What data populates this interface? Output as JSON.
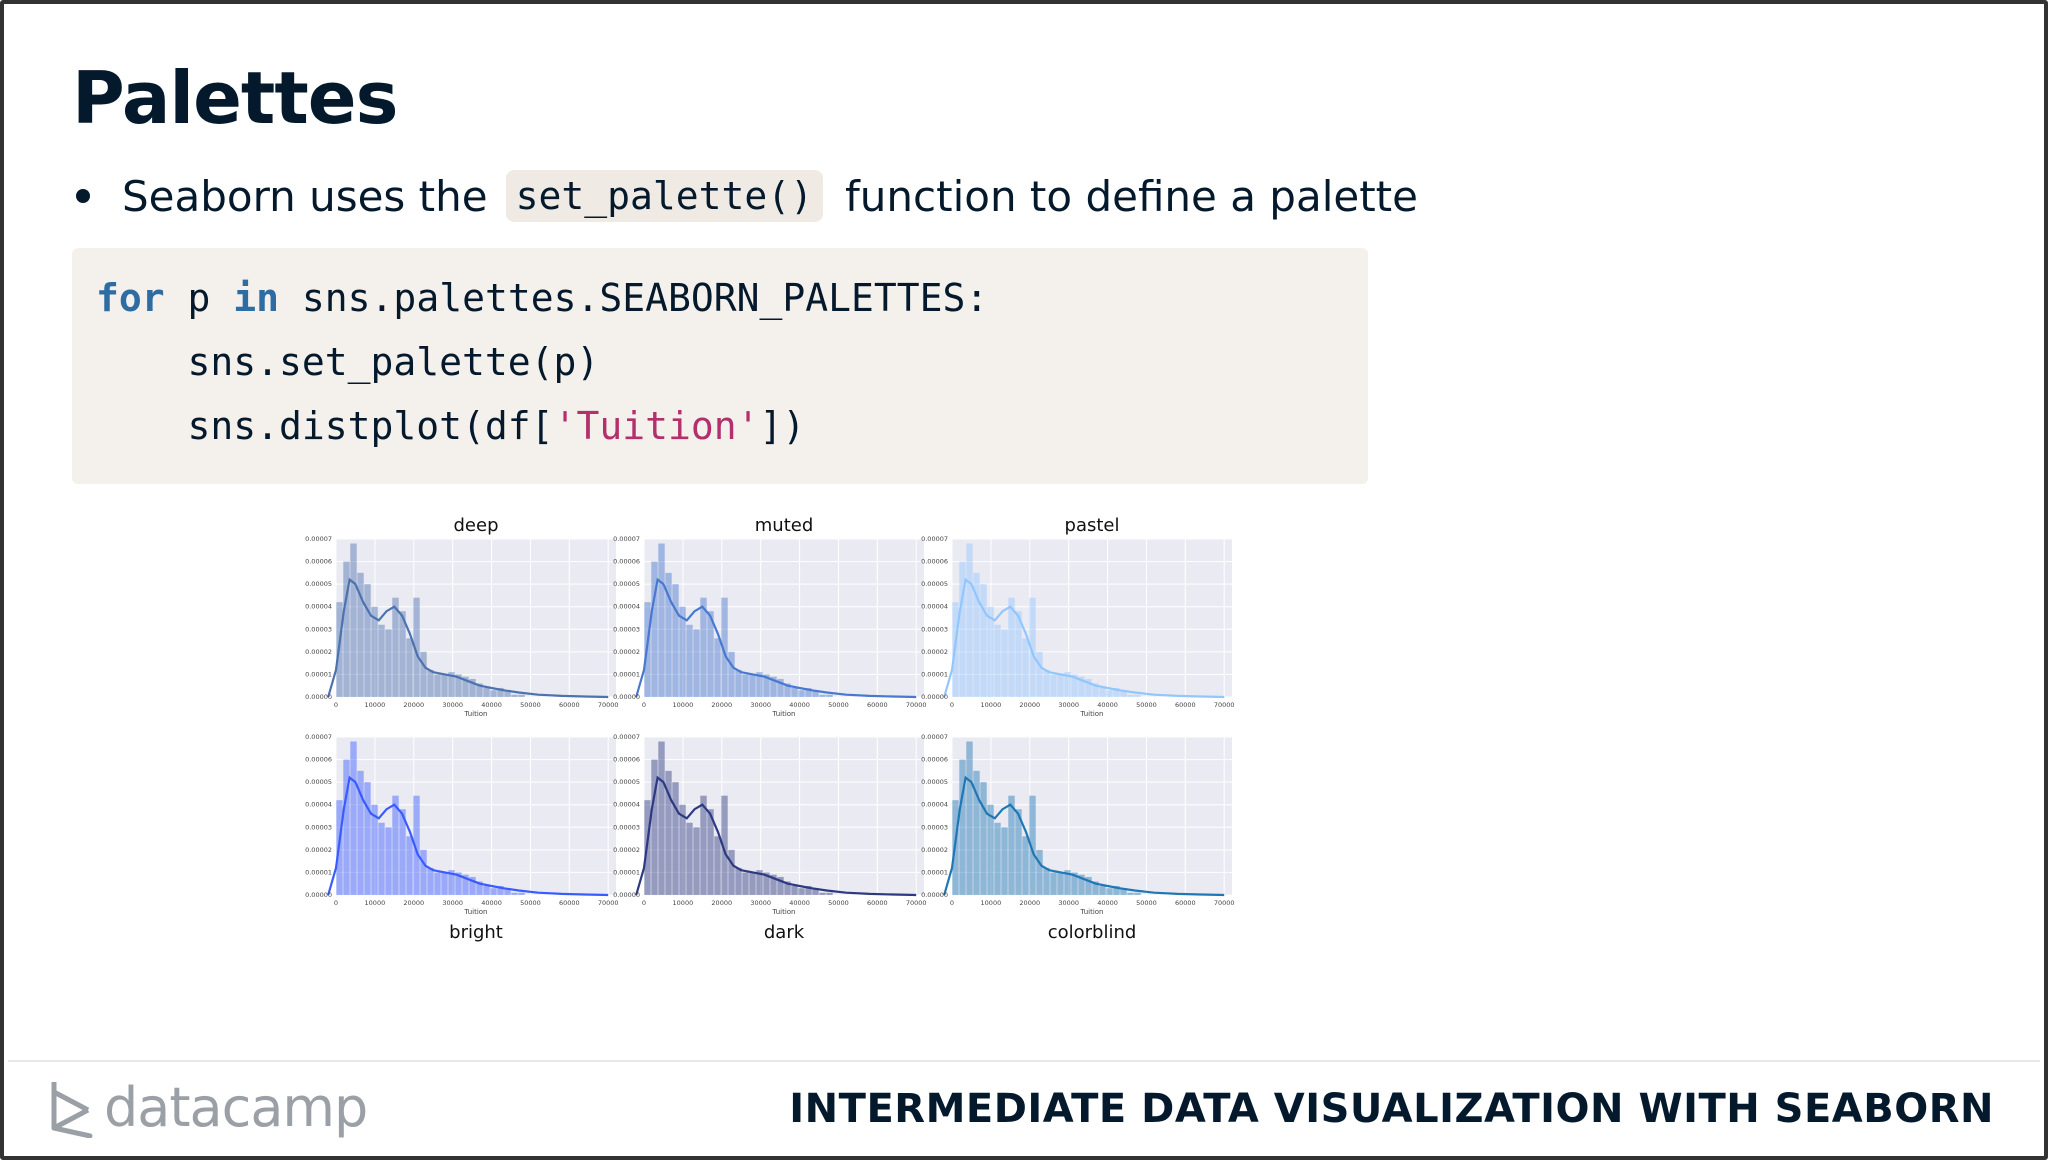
{
  "slide": {
    "title": "Palettes",
    "bullet": {
      "prefix": "Seaborn uses the",
      "code": "set_palette()",
      "suffix": "function to define a palette"
    },
    "code_block": {
      "line1": {
        "kw1": "for",
        "mid": " p ",
        "kw2": "in",
        "rest": " sns.palettes.SEABORN_PALETTES:"
      },
      "line2": "    sns.set_palette(p)",
      "line3": {
        "pre": "    sns.distplot(df[",
        "str": "'Tuition'",
        "post": "])"
      }
    }
  },
  "footer": {
    "brand": "datacamp",
    "course_title": "INTERMEDIATE DATA VISUALIZATION WITH SEABORN"
  },
  "chart_data": [
    {
      "type": "histogram+kde",
      "title": "deep",
      "xlabel": "Tuition",
      "color": "#4c72b0"
    },
    {
      "type": "histogram+kde",
      "title": "muted",
      "xlabel": "Tuition",
      "color": "#4878cf"
    },
    {
      "type": "histogram+kde",
      "title": "pastel",
      "xlabel": "Tuition",
      "color": "#92c6ff"
    },
    {
      "type": "histogram+kde",
      "title": "bright",
      "xlabel": "Tuition",
      "color": "#3a5cff"
    },
    {
      "type": "histogram+kde",
      "title": "dark",
      "xlabel": "Tuition",
      "color": "#2e3a80"
    },
    {
      "type": "histogram+kde",
      "title": "colorblind",
      "xlabel": "Tuition",
      "color": "#1f78b4"
    }
  ],
  "shared_axes": {
    "x_ticks": [
      "0",
      "10000",
      "20000",
      "30000",
      "40000",
      "50000",
      "60000",
      "70000"
    ],
    "y_ticks": [
      "0.00000",
      "0.00001",
      "0.00002",
      "0.00003",
      "0.00004",
      "0.00005",
      "0.00006",
      "0.00007"
    ],
    "xlim": [
      0,
      72000
    ],
    "ylim": [
      0,
      7e-05
    ],
    "hist_bins": [
      [
        0,
        1800,
        4.2e-05
      ],
      [
        1800,
        3600,
        6e-05
      ],
      [
        3600,
        5400,
        6.8e-05
      ],
      [
        5400,
        7200,
        5.5e-05
      ],
      [
        7200,
        9000,
        5e-05
      ],
      [
        9000,
        10800,
        4e-05
      ],
      [
        10800,
        12600,
        3.2e-05
      ],
      [
        12600,
        14400,
        3e-05
      ],
      [
        14400,
        16200,
        4.4e-05
      ],
      [
        16200,
        18000,
        3.8e-05
      ],
      [
        18000,
        19800,
        2.6e-05
      ],
      [
        19800,
        21600,
        4.4e-05
      ],
      [
        21600,
        23400,
        2e-05
      ],
      [
        23400,
        25200,
        1.2e-05
      ],
      [
        25200,
        27000,
        1e-05
      ],
      [
        27000,
        28800,
        1e-05
      ],
      [
        28800,
        30600,
        1.1e-05
      ],
      [
        30600,
        32400,
        1e-05
      ],
      [
        32400,
        34200,
        9e-06
      ],
      [
        34200,
        36000,
        8e-06
      ],
      [
        36000,
        37800,
        6e-06
      ],
      [
        37800,
        39600,
        4e-06
      ],
      [
        39600,
        41400,
        3e-06
      ],
      [
        41400,
        43200,
        4e-06
      ],
      [
        43200,
        45000,
        3e-06
      ],
      [
        45000,
        46800,
        1e-06
      ],
      [
        46800,
        48600,
        1e-06
      ]
    ],
    "kde": [
      [
        -2000,
        0.0
      ],
      [
        0,
        1.2e-05
      ],
      [
        2000,
        3.8e-05
      ],
      [
        3500,
        5.2e-05
      ],
      [
        5000,
        5e-05
      ],
      [
        7000,
        4.2e-05
      ],
      [
        9000,
        3.6e-05
      ],
      [
        11000,
        3.4e-05
      ],
      [
        13000,
        3.8e-05
      ],
      [
        15000,
        4e-05
      ],
      [
        17000,
        3.6e-05
      ],
      [
        19000,
        2.8e-05
      ],
      [
        21000,
        1.8e-05
      ],
      [
        23000,
        1.3e-05
      ],
      [
        25000,
        1.1e-05
      ],
      [
        28000,
        1e-05
      ],
      [
        31000,
        9e-06
      ],
      [
        34000,
        7e-06
      ],
      [
        37000,
        5e-06
      ],
      [
        40000,
        4e-06
      ],
      [
        43000,
        3e-06
      ],
      [
        47000,
        2e-06
      ],
      [
        52000,
        1e-06
      ],
      [
        58000,
        5e-07
      ],
      [
        64000,
        2e-07
      ],
      [
        70000,
        0.0
      ]
    ]
  }
}
